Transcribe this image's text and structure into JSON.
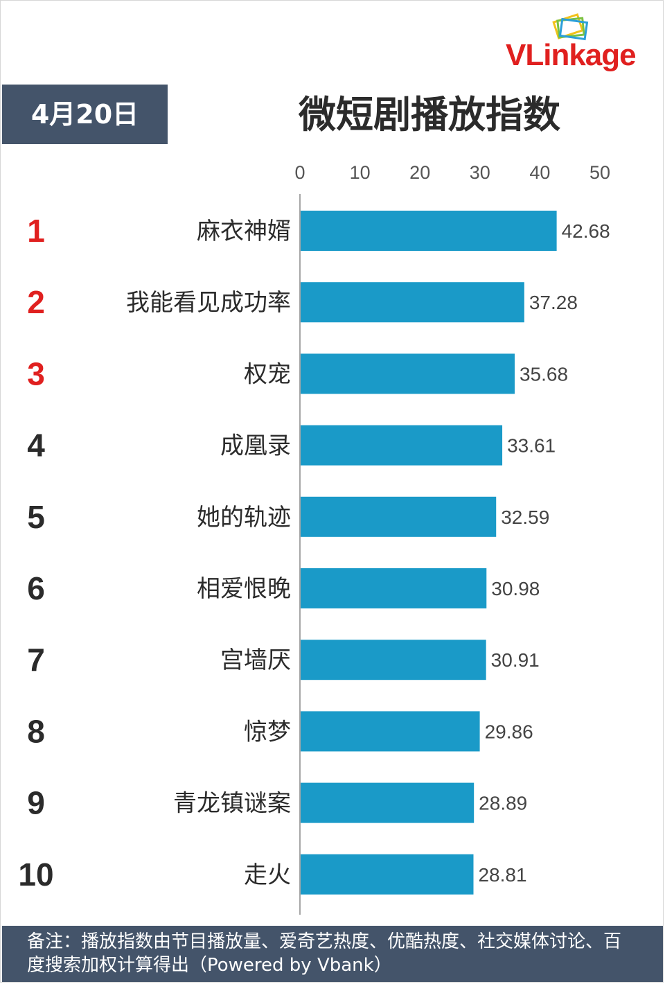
{
  "brand": {
    "logo_text": "VLinkage"
  },
  "header": {
    "date": "4月20日",
    "title": "微短剧播放指数"
  },
  "chart_data": {
    "type": "bar",
    "orientation": "horizontal",
    "title": "微短剧播放指数",
    "xlim": [
      0,
      50
    ],
    "x_ticks": [
      0,
      10,
      20,
      30,
      40,
      50
    ],
    "x_axis_position": "top",
    "grid": false,
    "bar_color": "#1a9ac8",
    "rank_colors": {
      "top3": "#e0201f",
      "rest": "#2b2b2b"
    },
    "ranks": [
      "1",
      "2",
      "3",
      "4",
      "5",
      "6",
      "7",
      "8",
      "9",
      "10"
    ],
    "categories": [
      "麻衣神婿",
      "我能看见成功率",
      "权宠",
      "成凰录",
      "她的轨迹",
      "相爱恨晚",
      "宫墙厌",
      "惊梦",
      "青龙镇谜案",
      "走火"
    ],
    "values": [
      42.68,
      37.28,
      35.68,
      33.61,
      32.59,
      30.98,
      30.91,
      29.86,
      28.89,
      28.81
    ],
    "value_labels": [
      "42.68",
      "37.28",
      "35.68",
      "33.61",
      "32.59",
      "30.98",
      "30.91",
      "29.86",
      "28.89",
      "28.81"
    ]
  },
  "footer": {
    "note": "备注：播放指数由节目播放量、爱奇艺热度、优酷热度、社交媒体讨论、百度搜索加权计算得出（Powered by Vbank）"
  }
}
